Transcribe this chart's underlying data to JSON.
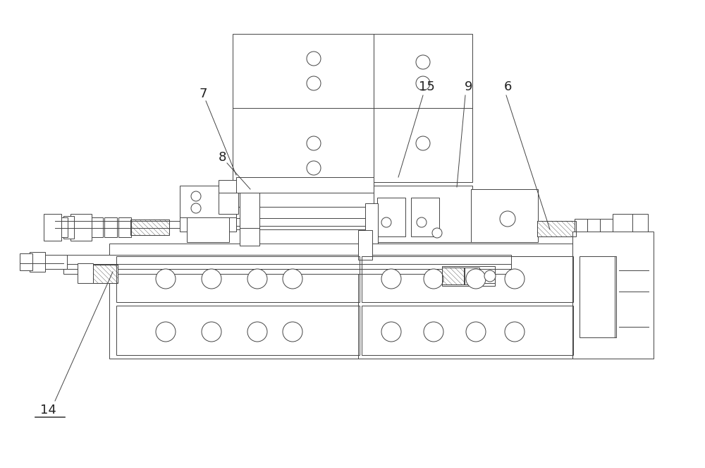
{
  "figure_width": 10.0,
  "figure_height": 6.63,
  "dpi": 100,
  "bg_color": "#ffffff",
  "lc": "#444444",
  "lw": 0.7,
  "hatch_lc": "#777777",
  "label_color": "#222222",
  "label_fs": 13
}
